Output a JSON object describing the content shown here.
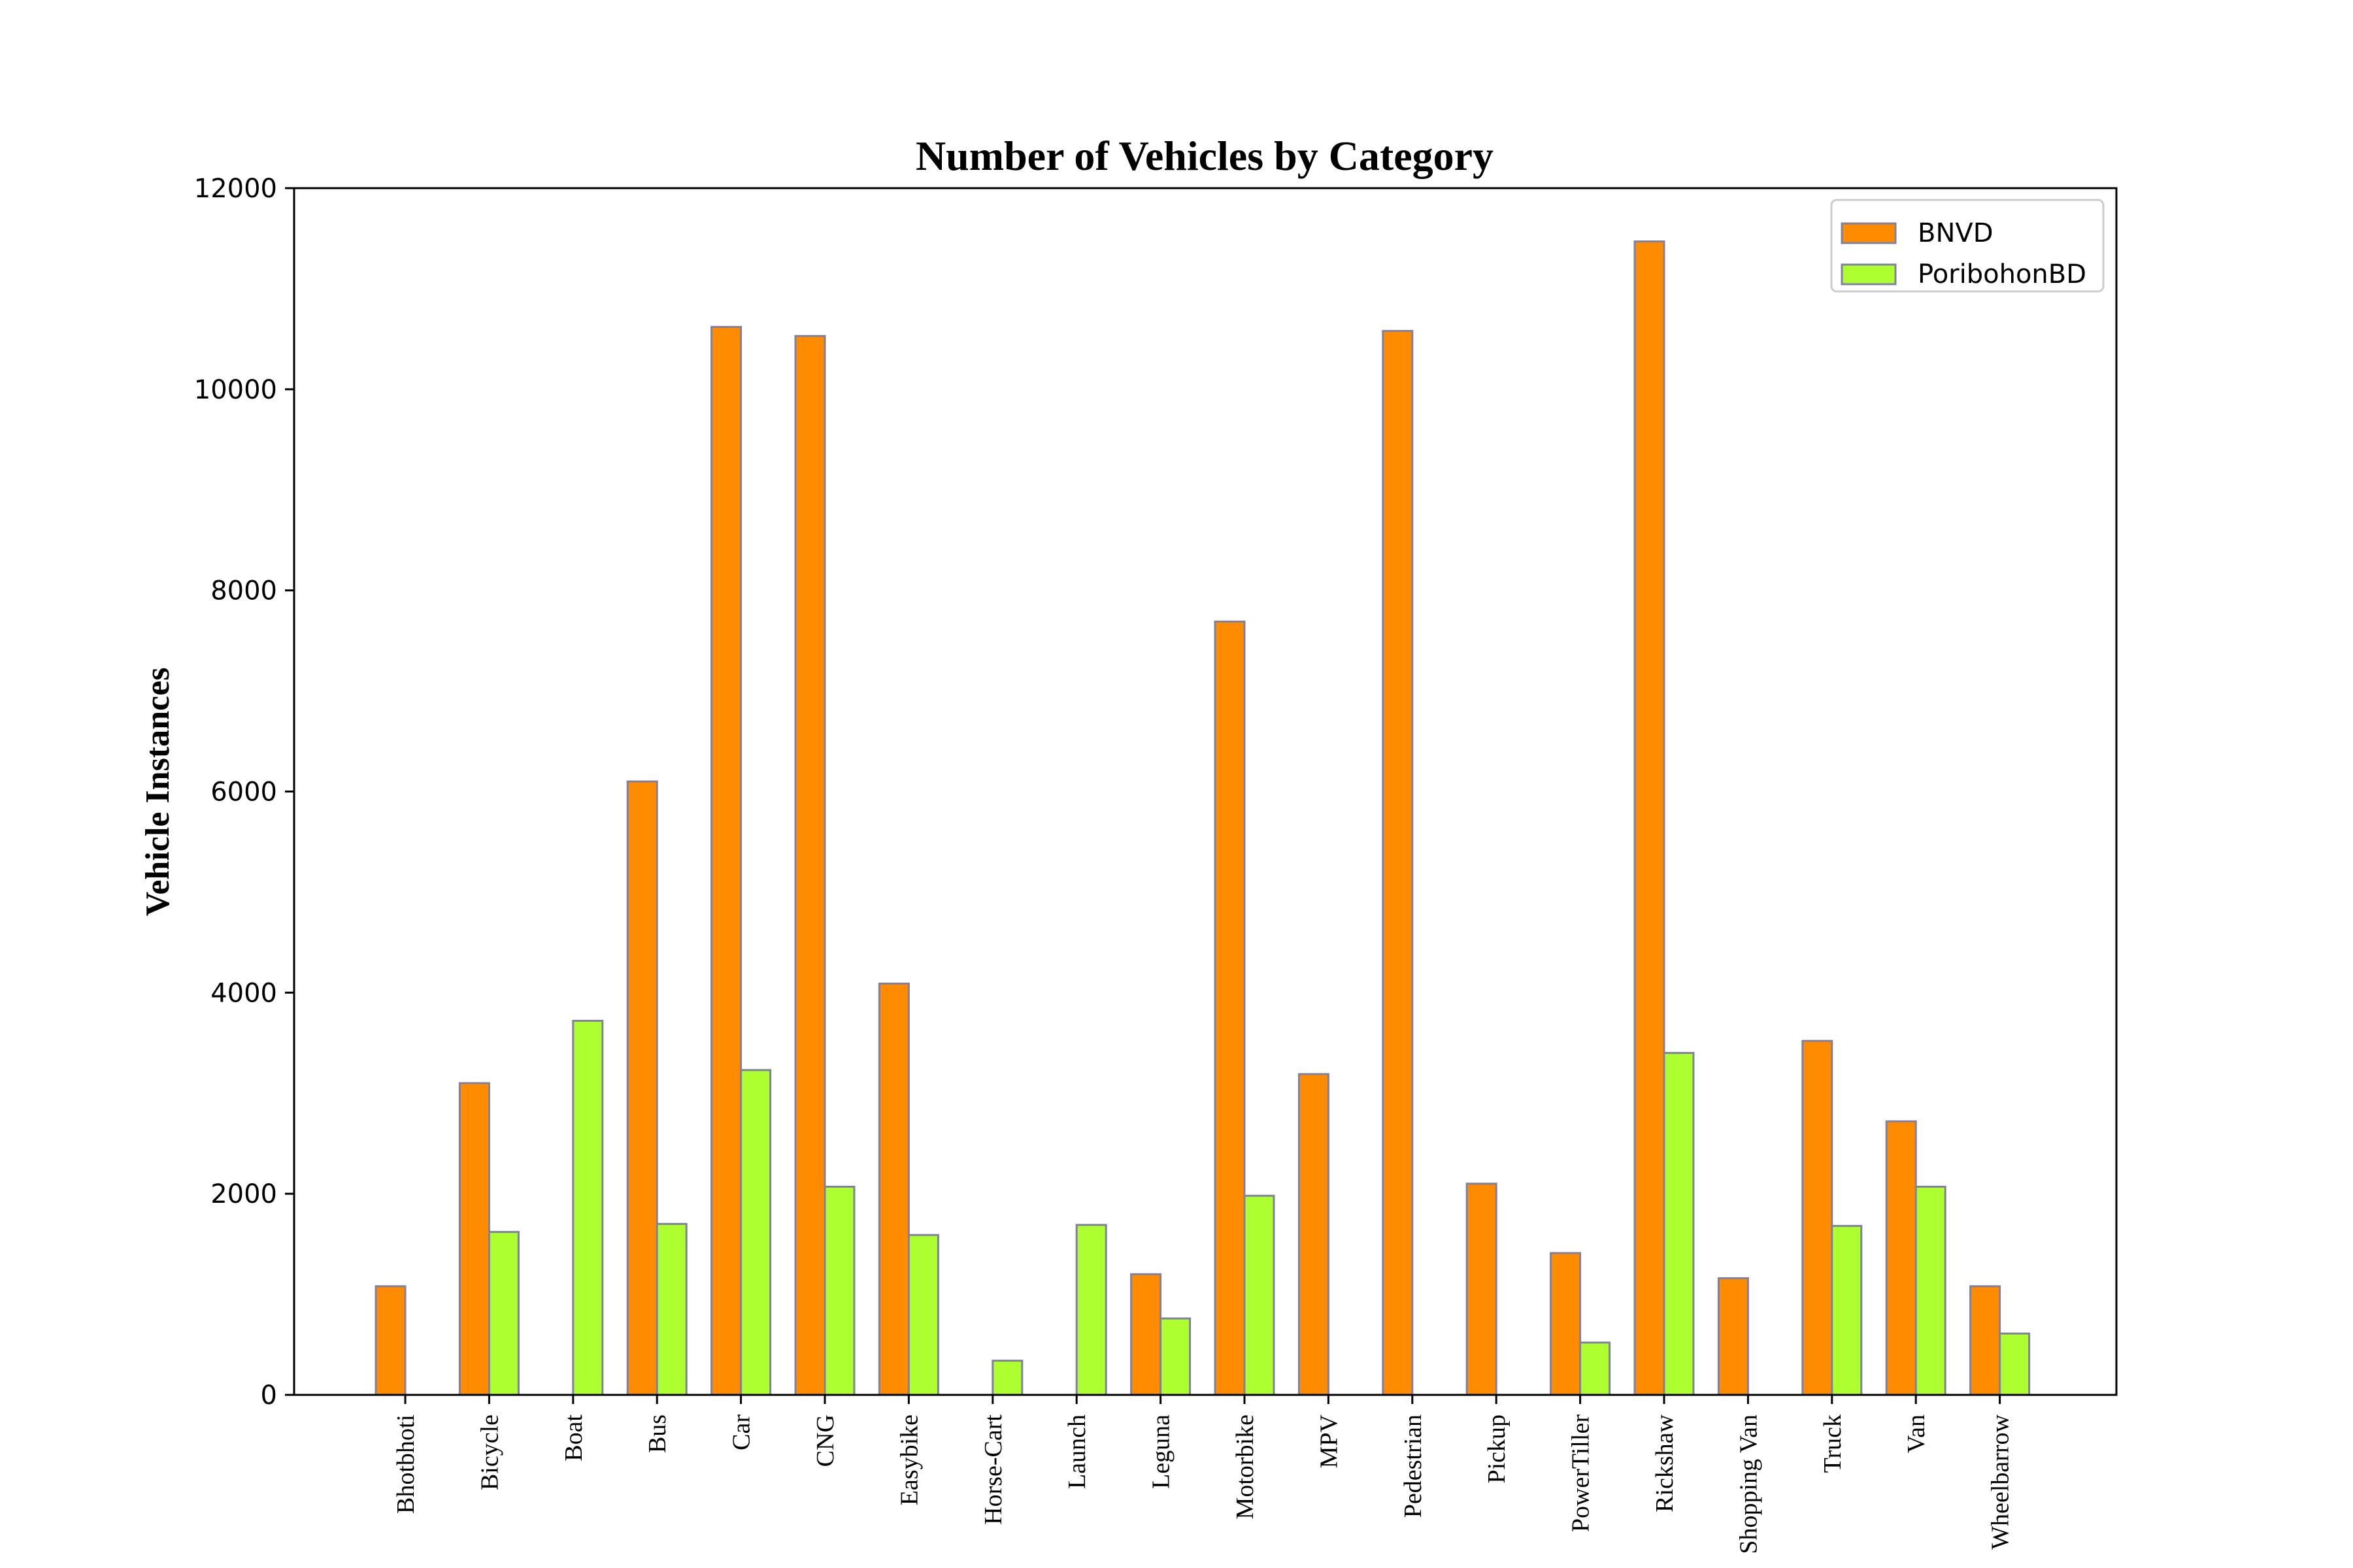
{
  "chart_data": {
    "type": "bar",
    "title": "Number of Vehicles by Category",
    "xlabel": "",
    "ylabel": "Vehicle Instances",
    "ylim": [
      0,
      12000
    ],
    "yticks": [
      "0",
      "2000",
      "4000",
      "6000",
      "8000",
      "10000",
      "12000"
    ],
    "grid": false,
    "legend_position": "top-right",
    "categories": [
      "Bhotbhoti",
      "Bicycle",
      "Boat",
      "Bus",
      "Car",
      "CNG",
      "Easybike",
      "Horse-Cart",
      "Launch",
      "Leguna",
      "Motorbike",
      "MPV",
      "Pedestrian",
      "Pickup",
      "PowerTiller",
      "Rickshaw",
      "Shopping Van",
      "Truck",
      "Van",
      "Wheelbarrow"
    ],
    "series": [
      {
        "name": "BNVD",
        "color": "#ff8c00",
        "values": [
          1080,
          3100,
          0,
          6100,
          10620,
          10530,
          4090,
          0,
          0,
          1200,
          7690,
          3190,
          10580,
          2100,
          1410,
          11470,
          1160,
          3520,
          2720,
          1080
        ]
      },
      {
        "name": "PoribohonBD",
        "color": "#adff2f",
        "values": [
          0,
          1620,
          3720,
          1700,
          3230,
          2070,
          1590,
          340,
          1690,
          760,
          1980,
          0,
          0,
          0,
          520,
          3400,
          0,
          1680,
          2070,
          610
        ]
      }
    ],
    "edge_color": "#8080a0"
  }
}
